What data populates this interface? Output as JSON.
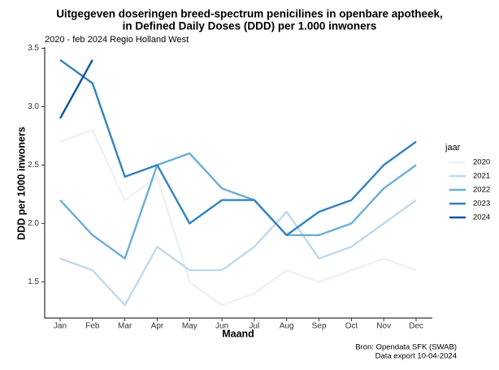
{
  "chart_data": {
    "type": "line",
    "title": [
      "Uitgegeven doseringen breed-spectrum penicilines in openbare apotheek,",
      "in Defined Daily Doses (DDD) per 1.000 inwoners"
    ],
    "subtitle": "2020 - feb 2024 Regio Holland West",
    "x_label": "Maand",
    "y_label": "DDD per 1000 inwoners",
    "legend_title": "jaar",
    "caption": [
      "Bron: Opendata SFK (SWAB)",
      "Data export 10-04-2024"
    ],
    "categories": [
      "Jan",
      "Feb",
      "Mar",
      "Apr",
      "May",
      "Jun",
      "Jul",
      "Aug",
      "Sep",
      "Oct",
      "Nov",
      "Dec"
    ],
    "series": [
      {
        "name": "2020",
        "color": "#eaf1fa",
        "values": [
          2.7,
          2.8,
          2.2,
          2.4,
          1.5,
          1.3,
          1.4,
          1.6,
          1.5,
          1.6,
          1.7,
          1.6
        ]
      },
      {
        "name": "2021",
        "color": "#c0d8ec",
        "values": [
          1.7,
          1.6,
          1.3,
          1.8,
          1.6,
          1.6,
          1.8,
          2.1,
          1.7,
          1.8,
          2.0,
          2.2
        ]
      },
      {
        "name": "2022",
        "color": "#6aaed6",
        "values": [
          2.2,
          1.9,
          1.7,
          2.5,
          2.6,
          2.3,
          2.2,
          1.9,
          1.9,
          2.0,
          2.3,
          2.5
        ]
      },
      {
        "name": "2023",
        "color": "#3282bd",
        "values": [
          3.4,
          3.2,
          2.4,
          2.5,
          2.0,
          2.2,
          2.2,
          1.9,
          2.1,
          2.2,
          2.5,
          2.7
        ]
      },
      {
        "name": "2024",
        "color": "#0b559f",
        "values": [
          2.9,
          3.4,
          null,
          null,
          null,
          null,
          null,
          null,
          null,
          null,
          null,
          null
        ]
      }
    ],
    "ylim": [
      1.19,
      3.51
    ],
    "yticks": [
      1.5,
      {
        "value": 2,
        "label": "2.0"
      },
      2.5,
      {
        "value": 3,
        "label": "3.0"
      },
      3.5
    ],
    "grid": false,
    "legend_position": "right"
  }
}
